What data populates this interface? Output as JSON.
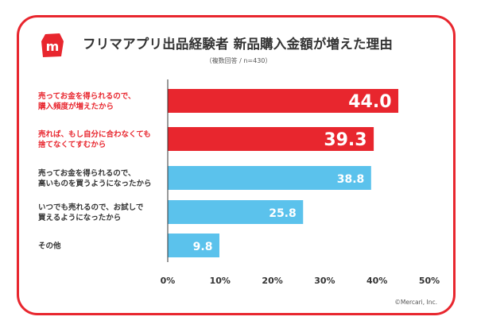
{
  "title": "フリマアプリ出品経験者 新品購入金額が増えた理由",
  "subtitle": "（複数回答 / n=430）",
  "copyright": "©Mercari, Inc.",
  "colors": {
    "border": "#e8262e",
    "highlight_bar": "#e8262e",
    "normal_bar": "#5bc2ec",
    "highlight_text": "#e8262e",
    "normal_text": "#333333",
    "axis": "#333333"
  },
  "chart_data": {
    "type": "bar",
    "orientation": "horizontal",
    "categories": [
      [
        "売ってお金を得られるので、",
        "購入頻度が増えたから"
      ],
      [
        "売れば、もし自分に合わなくても",
        "捨てなくてすむから"
      ],
      [
        "売ってお金を得られるので、",
        "高いものを買うようになったから"
      ],
      [
        "いつでも売れるので、お試しで",
        "買えるようになったから"
      ],
      [
        "その他"
      ]
    ],
    "values": [
      44.0,
      39.3,
      38.8,
      25.8,
      9.8
    ],
    "value_labels": [
      "44.0",
      "39.3",
      "38.8",
      "25.8",
      "9.8"
    ],
    "highlighted": [
      true,
      true,
      false,
      false,
      false
    ],
    "xlim": [
      0,
      50
    ],
    "xticks": [
      0,
      10,
      20,
      30,
      40,
      50
    ],
    "xtick_labels": [
      "0%",
      "10%",
      "20%",
      "30%",
      "40%",
      "50%"
    ],
    "grid": false
  }
}
